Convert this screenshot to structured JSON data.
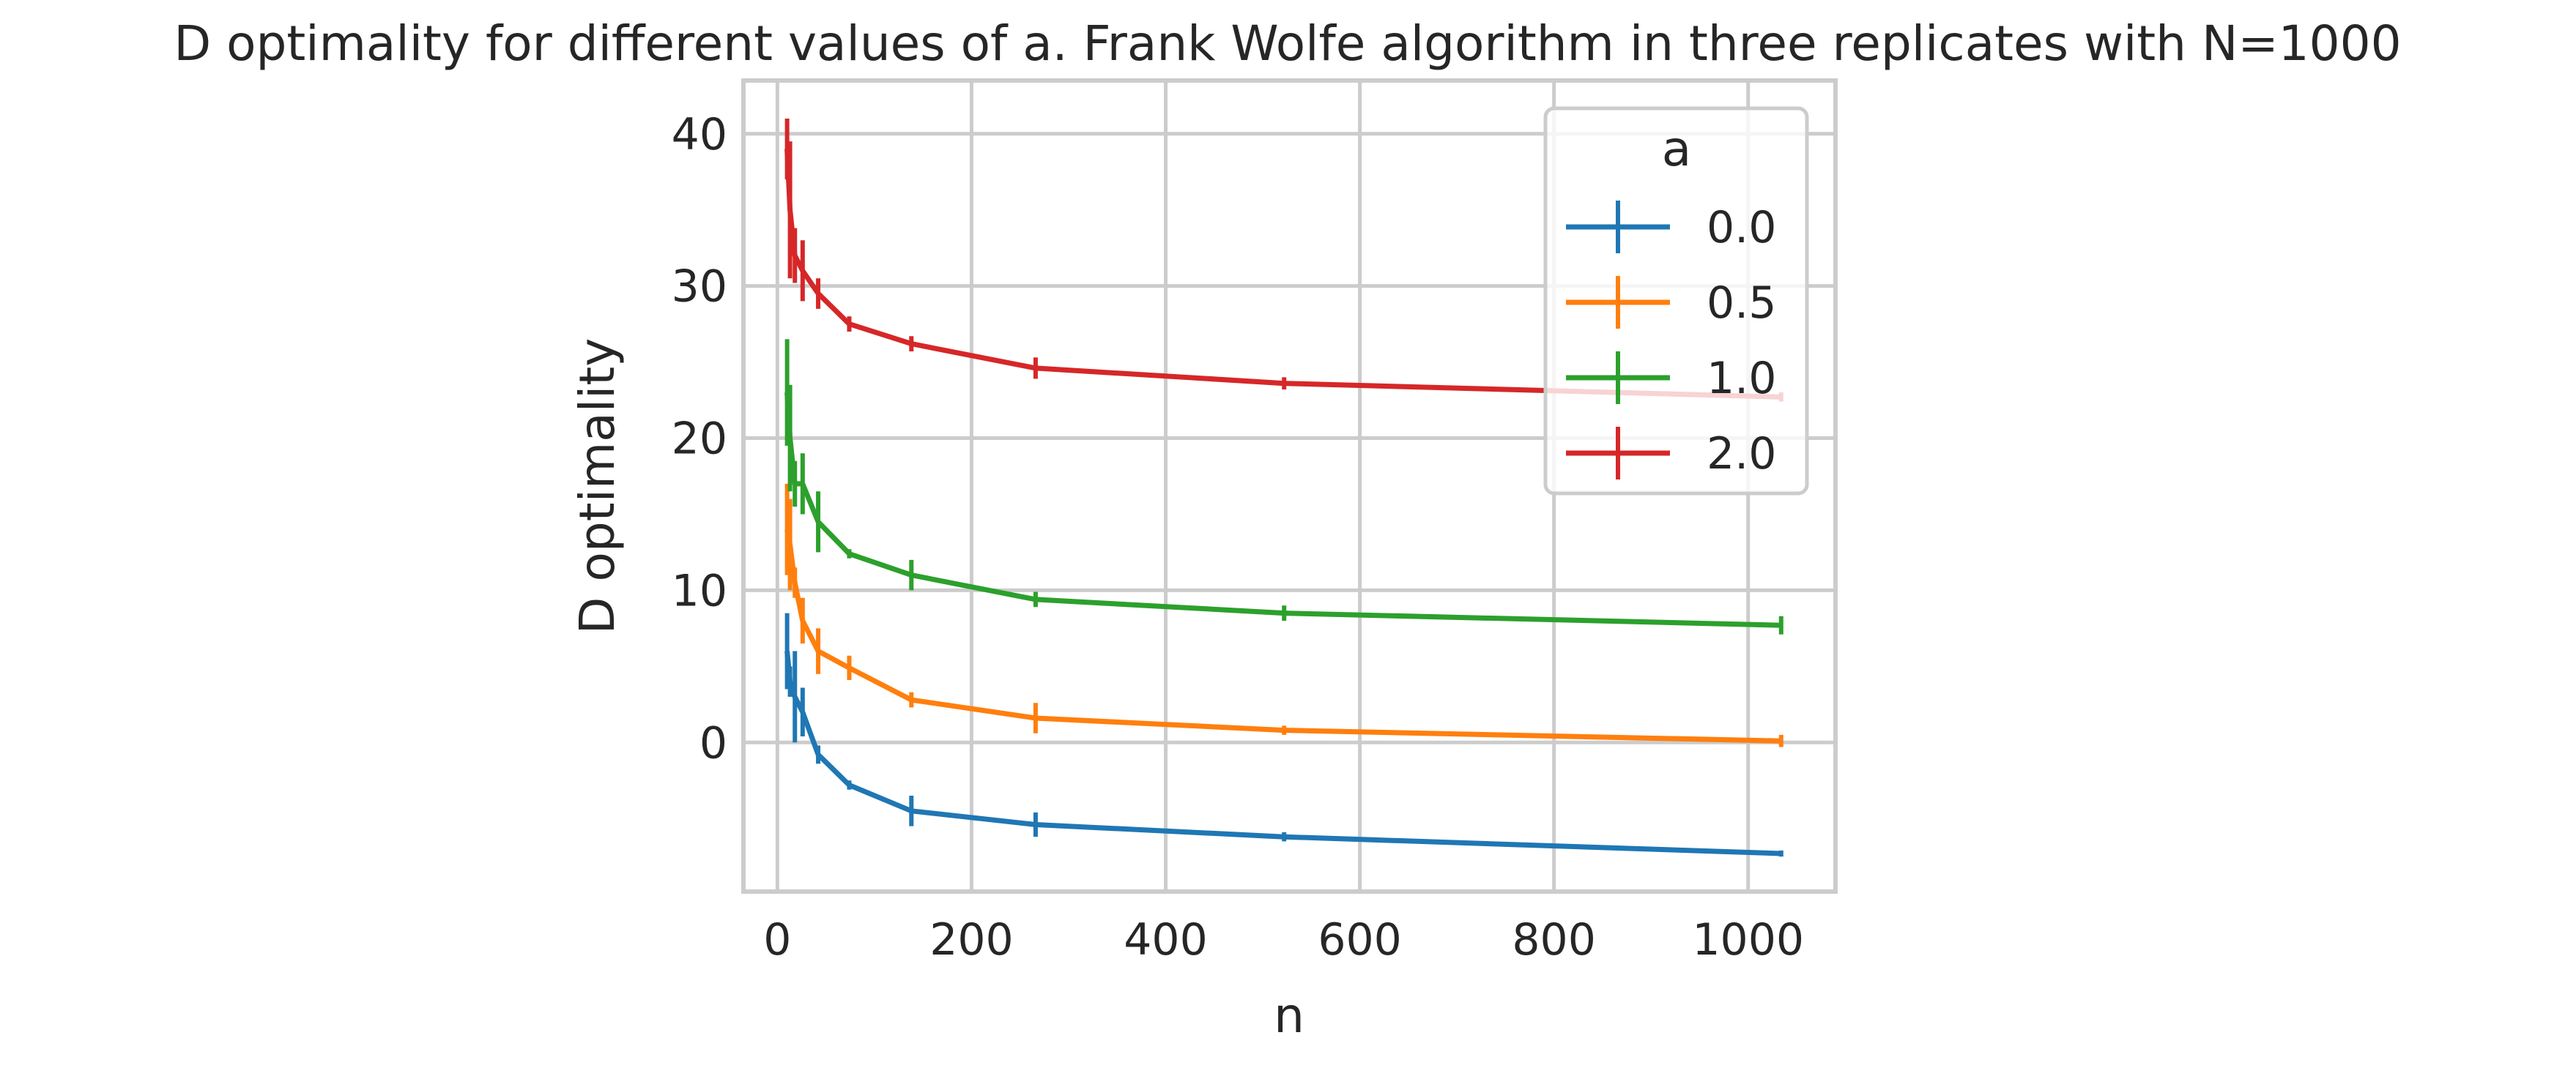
{
  "chart_data": {
    "type": "line",
    "title": "D optimality for different values of a. Frank Wolfe algorithm in three replicates with N=1000",
    "xlabel": "n",
    "ylabel": "D optimality",
    "xlim": [
      -35,
      1090
    ],
    "ylim": [
      -9.8,
      43.5
    ],
    "xticks": [
      0,
      200,
      400,
      600,
      800,
      1000
    ],
    "xtick_labels": [
      "0",
      "200",
      "400",
      "600",
      "800",
      "1000"
    ],
    "yticks": [
      0,
      10,
      20,
      30,
      40
    ],
    "ytick_labels": [
      "0",
      "10",
      "20",
      "30",
      "40"
    ],
    "grid": true,
    "legend": {
      "title": "a",
      "placement": "top-right"
    },
    "series": [
      {
        "name": "0.0",
        "color": "#1f77b4",
        "x": [
          10,
          13,
          18,
          26,
          42,
          74,
          138,
          266,
          522,
          1034
        ],
        "y": [
          6.0,
          4.0,
          3.0,
          2.0,
          -0.8,
          -2.8,
          -4.5,
          -5.4,
          -6.2,
          -7.3
        ],
        "err": [
          2.5,
          1.0,
          3.0,
          1.6,
          0.6,
          0.3,
          1.0,
          0.8,
          0.3,
          0.2
        ]
      },
      {
        "name": "0.5",
        "color": "#ff7f0e",
        "x": [
          10,
          13,
          18,
          26,
          42,
          74,
          138,
          266,
          522,
          1034
        ],
        "y": [
          14.0,
          13.0,
          10.5,
          8.0,
          6.0,
          4.9,
          2.8,
          1.6,
          0.8,
          0.1
        ],
        "err": [
          3.0,
          3.0,
          1.0,
          1.5,
          1.5,
          0.8,
          0.5,
          1.0,
          0.3,
          0.4
        ]
      },
      {
        "name": "1.0",
        "color": "#2ca02c",
        "x": [
          10,
          13,
          18,
          26,
          42,
          74,
          138,
          266,
          522,
          1034
        ],
        "y": [
          23.0,
          20.0,
          17.0,
          17.0,
          14.5,
          12.4,
          11.0,
          9.4,
          8.5,
          7.7
        ],
        "err": [
          3.5,
          3.5,
          1.5,
          2.0,
          2.0,
          0.3,
          1.0,
          0.5,
          0.5,
          0.6
        ]
      },
      {
        "name": "2.0",
        "color": "#d62728",
        "x": [
          10,
          13,
          18,
          26,
          42,
          74,
          138,
          266,
          522,
          1034
        ],
        "y": [
          39.0,
          35.0,
          32.0,
          31.0,
          29.5,
          27.5,
          26.2,
          24.6,
          23.6,
          22.7
        ],
        "err": [
          2.0,
          4.5,
          1.8,
          2.0,
          1.0,
          0.5,
          0.5,
          0.7,
          0.4,
          0.3
        ]
      }
    ]
  }
}
